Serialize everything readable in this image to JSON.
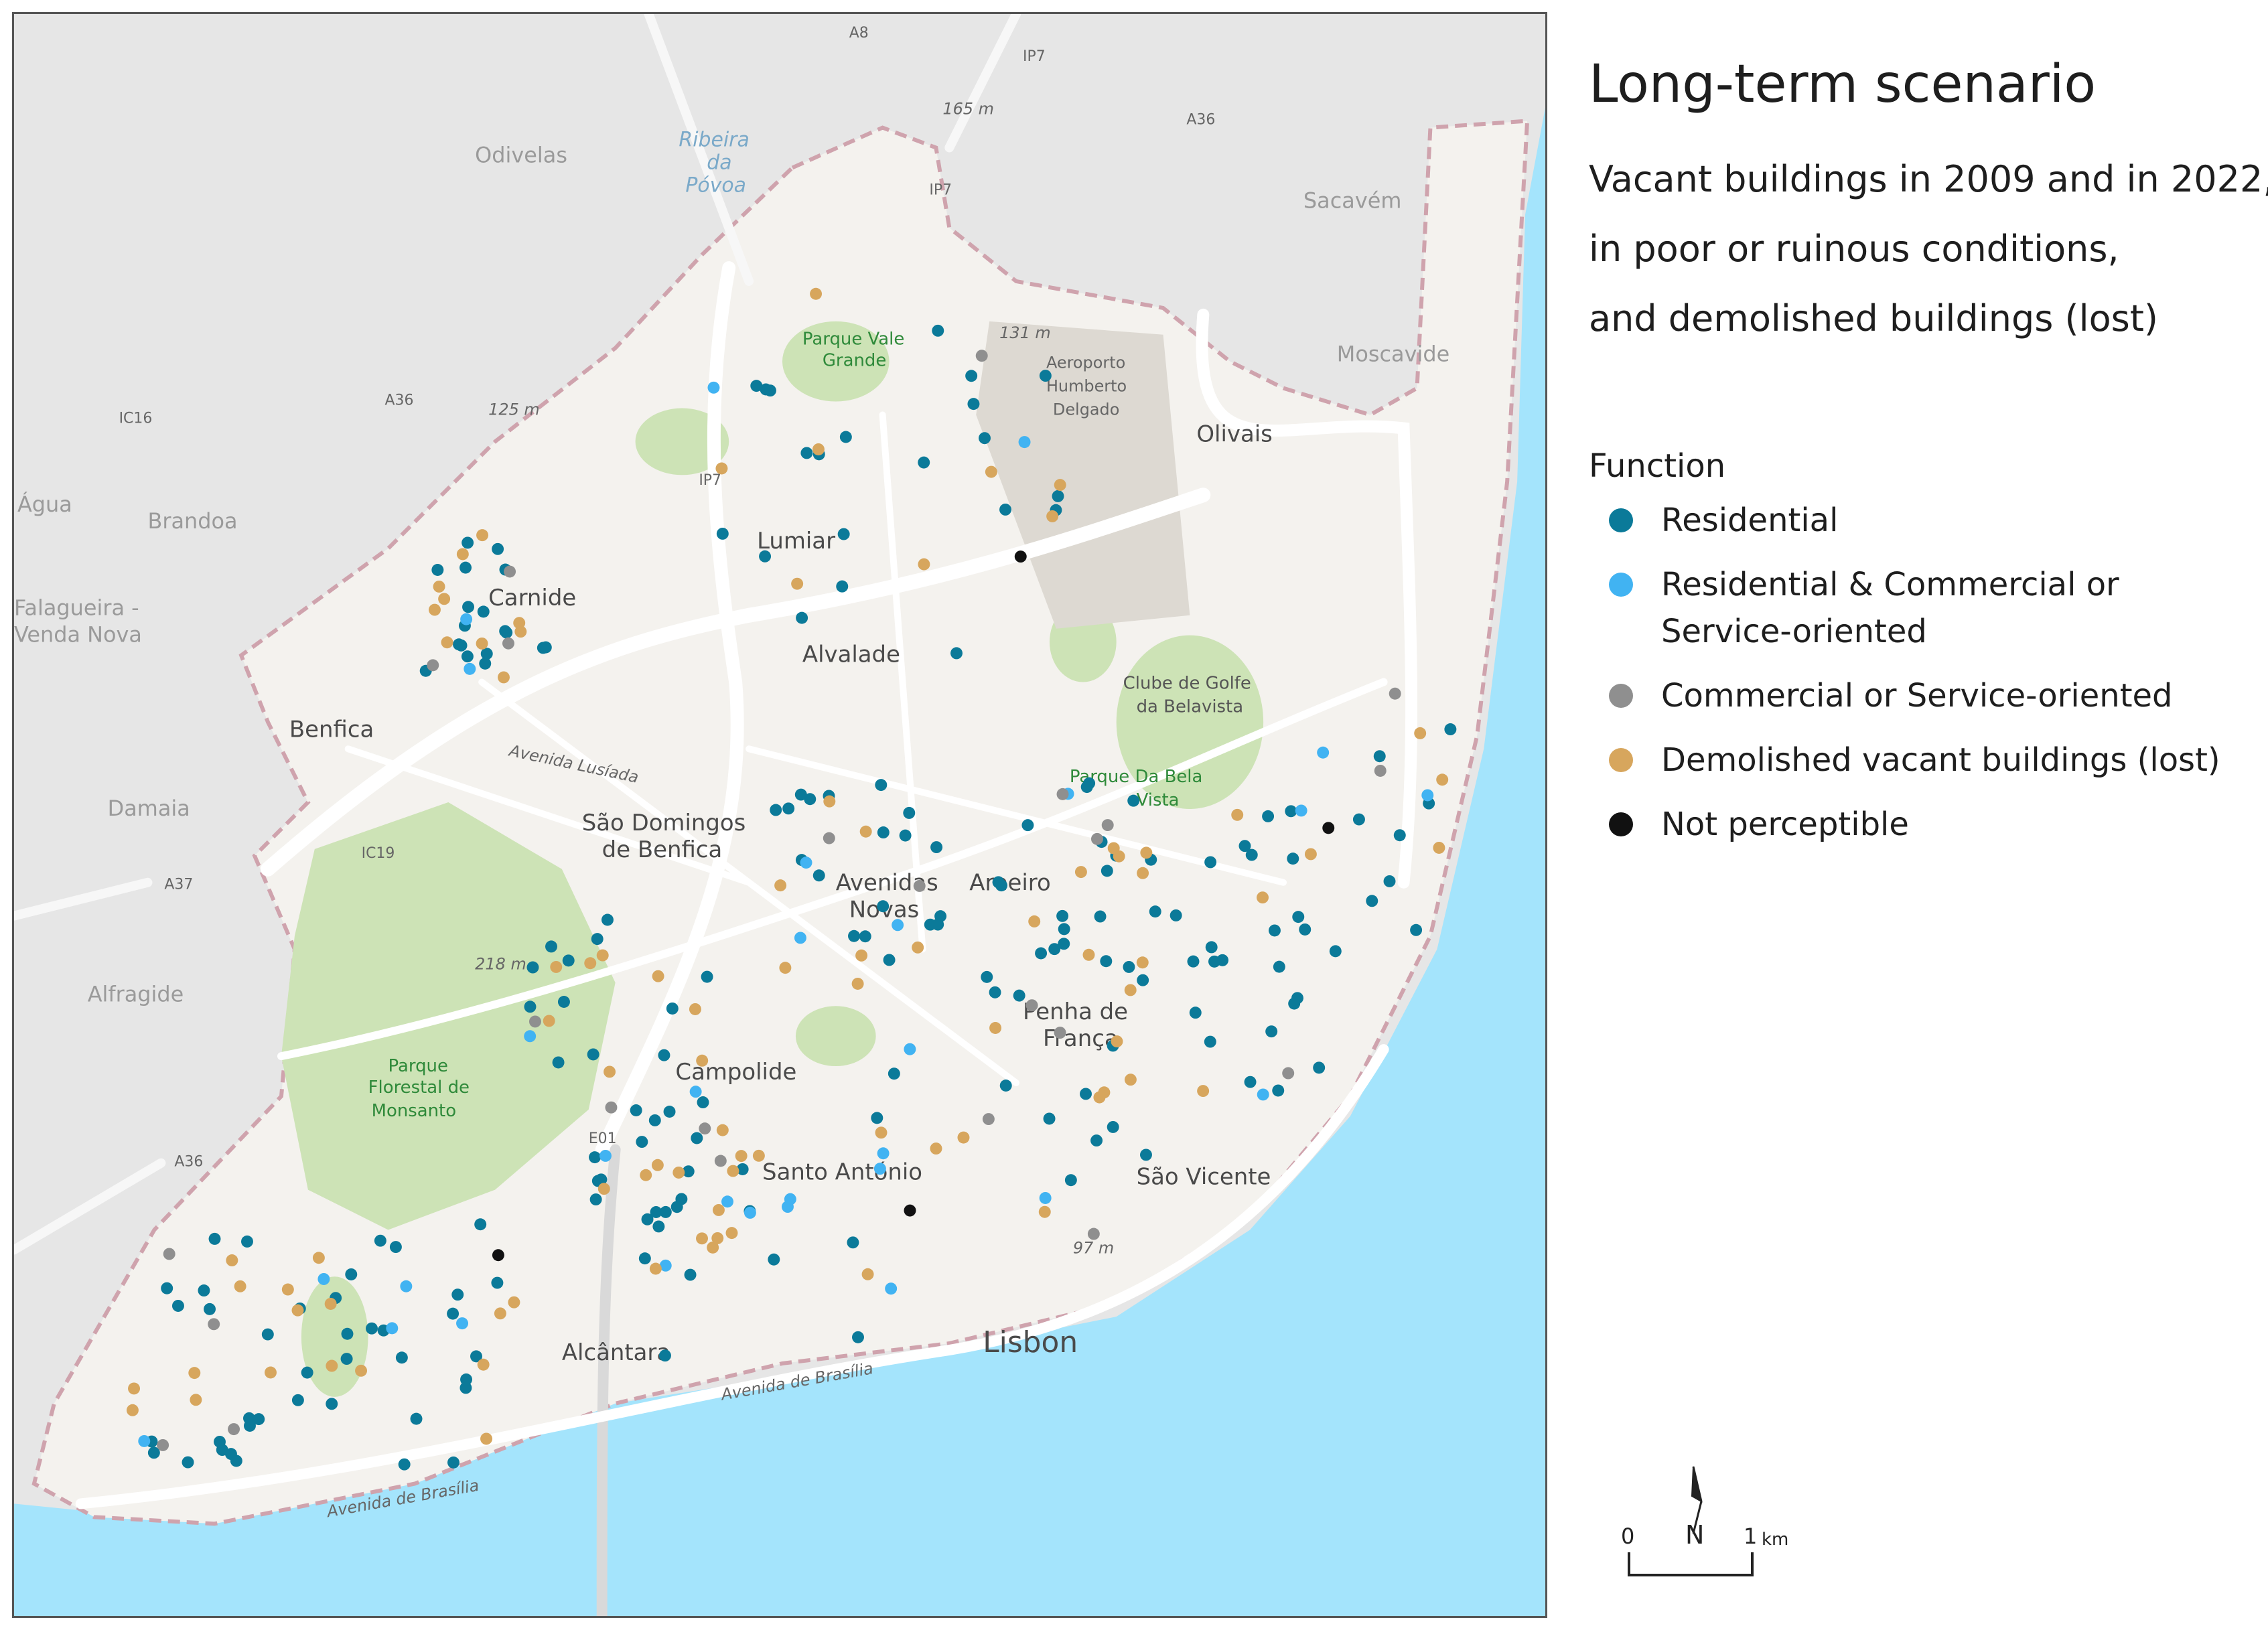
{
  "legend": {
    "title": "Long-term scenario",
    "subtitle_lines": [
      "Vacant buildings in 2009 and in 2022,",
      "in poor or ruinous conditions,",
      "and demolished buildings (lost)"
    ],
    "function_heading": "Function",
    "items": [
      {
        "label": "Residential",
        "color": "#0b7a99"
      },
      {
        "label": "Residential & Commercial or Service-oriented",
        "color": "#41b3f2"
      },
      {
        "label": "Commercial or Service-oriented",
        "color": "#8f8f8f"
      },
      {
        "label": "Demolished vacant buildings (lost)",
        "color": "#d7a65d"
      },
      {
        "label": "Not perceptible",
        "color": "#111111"
      }
    ]
  },
  "scale": {
    "start": "0",
    "end": "1",
    "unit": "km",
    "north": "N"
  },
  "map_labels": {
    "places": [
      "Odivelas",
      "Lumiar",
      "Carnide",
      "Benfica",
      "Alvalade",
      "São Domingos",
      "de Benfica",
      "Avenidas",
      "Novas",
      "Areeiro",
      "Olivais",
      "Moscavide",
      "Campolide",
      "Penha de",
      "França",
      "Santo António",
      "São Vicente",
      "Alcântara",
      "Lisbon",
      "Sacavém",
      "Brandoa",
      "Água",
      "Damaia",
      "Alfragide",
      "Falagueira -",
      "Venda Nova"
    ],
    "parks": [
      "Parque Vale",
      "Grande",
      "Clube de Golfe",
      "da Belavista",
      "Parque Da Bela",
      "Vista",
      "Parque",
      "Florestal de",
      "Monsanto"
    ],
    "airport": [
      "Aeroporto",
      "Humberto",
      "Delgado"
    ],
    "roads": [
      "Avenida Lusíada",
      "Avenida de Brasília",
      "Avenida de Brasília"
    ],
    "shields": [
      "A8",
      "IP7",
      "A36",
      "IP7",
      "IC16",
      "A36",
      "IP7",
      "IC19",
      "A37",
      "E01",
      "A36"
    ],
    "elevations": [
      "165 m",
      "131 m",
      "125 m",
      "218 m",
      "97 m"
    ],
    "water": [
      "Ribeira",
      "da",
      "Póvoa"
    ]
  },
  "colors": {
    "water": "#a4e4fc",
    "land": "#f4f2ee",
    "outside": "#e6e6e6",
    "park": "#cde3b6",
    "road": "#ffffff",
    "boundary": "#cfa3ad"
  },
  "counts": {
    "residential": 200,
    "mixed": 30,
    "commercial": 24,
    "demolished": 90,
    "not_perceptible": 4
  }
}
